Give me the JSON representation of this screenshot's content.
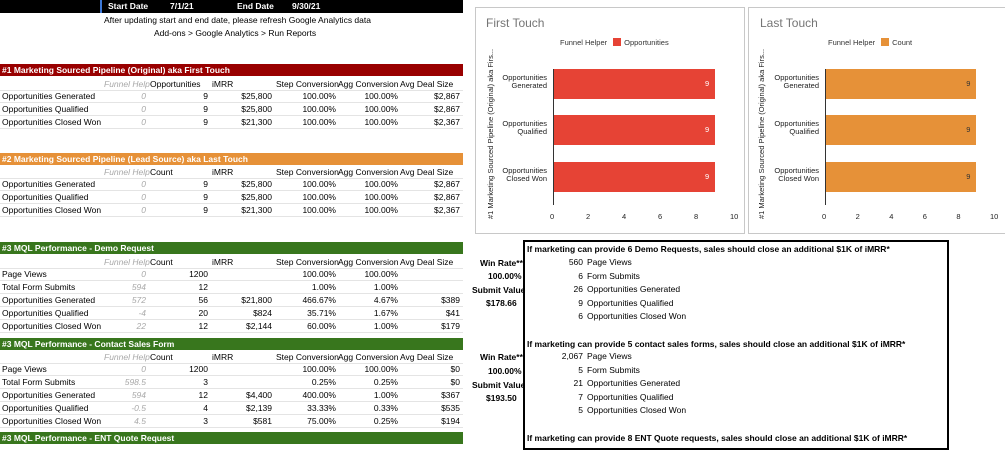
{
  "top": {
    "start_label": "Start Date",
    "start_value": "7/1/21",
    "end_label": "End Date",
    "end_value": "9/30/21",
    "note1": "After updating start and end date, please refresh Google Analytics data",
    "note2": "Add-ons > Google Analytics > Run Reports"
  },
  "colors": {
    "red": "#e64335",
    "orange": "#e69138",
    "green": "#38761d",
    "darkred": "#990000",
    "black": "#000000"
  },
  "sec1": {
    "title": "#1 Marketing Sourced Pipeline (Original) aka First Touch",
    "headers": [
      "Funnel Help",
      "Opportunities",
      "iMRR",
      "Step Conversion",
      "Agg Conversion",
      "Avg Deal Size"
    ],
    "rows": [
      [
        "Opportunities Generated",
        "0",
        "9",
        "$25,800",
        "100.00%",
        "100.00%",
        "$2,867"
      ],
      [
        "Opportunities Qualified",
        "0",
        "9",
        "$25,800",
        "100.00%",
        "100.00%",
        "$2,867"
      ],
      [
        "Opportunities Closed Won",
        "0",
        "9",
        "$21,300",
        "100.00%",
        "100.00%",
        "$2,367"
      ]
    ]
  },
  "sec2": {
    "title": "#2 Marketing Sourced Pipeline (Lead Source) aka Last Touch",
    "headers": [
      "Funnel Help",
      "Count",
      "iMRR",
      "Step Conversion",
      "Agg Conversion",
      "Avg Deal Size"
    ],
    "rows": [
      [
        "Opportunities Generated",
        "0",
        "9",
        "$25,800",
        "100.00%",
        "100.00%",
        "$2,867"
      ],
      [
        "Opportunities Qualified",
        "0",
        "9",
        "$25,800",
        "100.00%",
        "100.00%",
        "$2,867"
      ],
      [
        "Opportunities Closed Won",
        "0",
        "9",
        "$21,300",
        "100.00%",
        "100.00%",
        "$2,367"
      ]
    ]
  },
  "sec3": {
    "title": "#3 MQL Performance - Demo Request",
    "headers": [
      "Funnel Help",
      "Count",
      "iMRR",
      "Step Conversion",
      "Agg Conversion",
      "Avg Deal Size"
    ],
    "rows": [
      [
        "Page Views",
        "0",
        "1200",
        "",
        "100.00%",
        "100.00%",
        ""
      ],
      [
        "Total Form Submits",
        "594",
        "12",
        "",
        "1.00%",
        "1.00%",
        ""
      ],
      [
        "Opportunities Generated",
        "572",
        "56",
        "$21,800",
        "466.67%",
        "4.67%",
        "$389"
      ],
      [
        "Opportunities Qualified",
        "-4",
        "20",
        "$824",
        "35.71%",
        "1.67%",
        "$41"
      ],
      [
        "Opportunities Closed Won",
        "22",
        "12",
        "$2,144",
        "60.00%",
        "1.00%",
        "$179"
      ]
    ],
    "win_rate_label": "Win Rate**",
    "win_rate_value": "100.00%",
    "submit_value_label": "Submit Value",
    "submit_value_value": "$178.66",
    "box_title": "If marketing can provide 6 Demo Requests, sales should close an additional $1K of iMRR*",
    "box_rows": [
      [
        "560",
        "Page Views"
      ],
      [
        "6",
        "Form Submits"
      ],
      [
        "26",
        "Opportunities Generated"
      ],
      [
        "9",
        "Opportunities Qualified"
      ],
      [
        "6",
        "Opportunities Closed Won"
      ]
    ]
  },
  "sec4": {
    "title": "#3 MQL Performance - Contact Sales Form",
    "headers": [
      "Funnel Help",
      "Count",
      "iMRR",
      "Step Conversion",
      "Agg Conversion",
      "Avg Deal Size"
    ],
    "rows": [
      [
        "Page Views",
        "0",
        "1200",
        "",
        "100.00%",
        "100.00%",
        "$0"
      ],
      [
        "Total Form Submits",
        "598.5",
        "3",
        "",
        "0.25%",
        "0.25%",
        "$0"
      ],
      [
        "Opportunities Generated",
        "594",
        "12",
        "$4,400",
        "400.00%",
        "1.00%",
        "$367"
      ],
      [
        "Opportunities Qualified",
        "-0.5",
        "4",
        "$2,139",
        "33.33%",
        "0.33%",
        "$535"
      ],
      [
        "Opportunities Closed Won",
        "4.5",
        "3",
        "$581",
        "75.00%",
        "0.25%",
        "$194"
      ]
    ],
    "win_rate_label": "Win Rate**",
    "win_rate_value": "100.00%",
    "submit_value_label": "Submit Value",
    "submit_value_value": "$193.50",
    "box_title": "If marketing can provide 5 contact sales forms, sales should close an additional $1K of iMRR*",
    "box_rows": [
      [
        "2,067",
        "Page Views"
      ],
      [
        "5",
        "Form Submits"
      ],
      [
        "21",
        "Opportunities Generated"
      ],
      [
        "7",
        "Opportunities Qualified"
      ],
      [
        "5",
        "Opportunities Closed Won"
      ]
    ]
  },
  "sec5": {
    "title": "#3 MQL Performance - ENT Quote Request",
    "box_title": "If marketing can provide 8 ENT Quote requests, sales should close an additional $1K of iMRR*"
  },
  "chart_data": [
    {
      "type": "bar",
      "orientation": "horizontal",
      "title": "First Touch",
      "ylabel": "#1 Marketing Sourced Pipeline (Original) aka Firs...",
      "categories": [
        "Opportunities Generated",
        "Opportunities Qualified",
        "Opportunities Closed Won"
      ],
      "series": [
        {
          "name": "Funnel Helper",
          "values": [
            0,
            0,
            0
          ]
        },
        {
          "name": "Opportunities",
          "values": [
            9,
            9,
            9
          ],
          "color": "#e64335"
        }
      ],
      "xlim": [
        0,
        10
      ],
      "xticks": [
        "0",
        "2",
        "4",
        "6",
        "8",
        "10"
      ],
      "data_labels": [
        "9",
        "9",
        "9"
      ]
    },
    {
      "type": "bar",
      "orientation": "horizontal",
      "title": "Last Touch",
      "ylabel": "#1 Marketing Sourced Pipeline (Original) aka Firs...",
      "categories": [
        "Opportunities Generated",
        "Opportunities Qualified",
        "Opportunities Closed Won"
      ],
      "series": [
        {
          "name": "Funnel Helper",
          "values": [
            0,
            0,
            0
          ]
        },
        {
          "name": "Count",
          "values": [
            9,
            9,
            9
          ],
          "color": "#e69138"
        }
      ],
      "xlim": [
        0,
        10
      ],
      "xticks": [
        "0",
        "2",
        "4",
        "6",
        "8",
        "10"
      ],
      "data_labels": [
        "9",
        "9",
        "9"
      ]
    }
  ]
}
